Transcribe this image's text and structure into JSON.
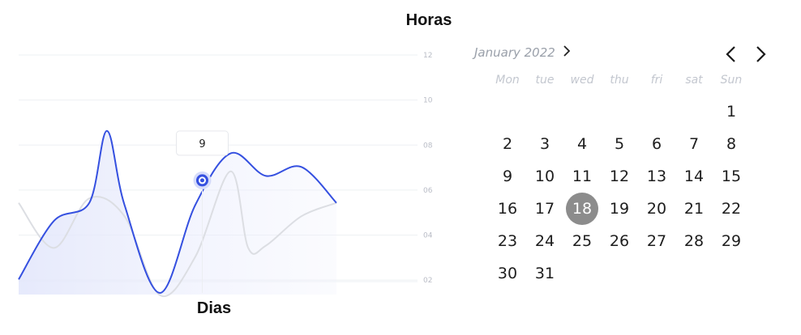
{
  "chart": {
    "title": "Horas",
    "xlabel": "Dias",
    "tooltip": "9"
  },
  "chart_data": {
    "type": "line",
    "title": "Horas",
    "xlabel": "Dias",
    "ylabel": "",
    "ylim": [
      1,
      12
    ],
    "yticks": [
      "12",
      "10",
      "08",
      "06",
      "04",
      "02"
    ],
    "grid": true,
    "series": [
      {
        "color": "#3550e0",
        "filled": true,
        "x": [
          0,
          10,
          20,
          25,
          30,
          40,
          50,
          60,
          70,
          80,
          90
        ],
        "y": [
          1.6,
          4.2,
          5.0,
          8.2,
          4.9,
          1.0,
          4.9,
          7.2,
          6.2,
          6.6,
          5.0
        ]
      },
      {
        "color": "#dcdee3",
        "filled": false,
        "x": [
          0,
          10,
          20,
          30,
          40,
          50,
          60,
          65,
          70,
          80,
          90
        ],
        "y": [
          5.0,
          3.0,
          5.2,
          4.4,
          0.9,
          2.6,
          6.4,
          3.0,
          3.1,
          4.4,
          5.0
        ]
      }
    ],
    "highlight": {
      "x": 52,
      "y": 6.0,
      "label": "9"
    }
  },
  "calendar": {
    "month_label": "January 2022",
    "weekdays": [
      "Mon",
      "tue",
      "wed",
      "thu",
      "fri",
      "sat",
      "Sun"
    ],
    "days": [
      "1",
      "2",
      "3",
      "4",
      "5",
      "6",
      "7",
      "8",
      "9",
      "10",
      "11",
      "12",
      "13",
      "14",
      "15",
      "16",
      "17",
      "18",
      "19",
      "20",
      "21",
      "22",
      "23",
      "24",
      "25",
      "26",
      "27",
      "28",
      "29",
      "30",
      "31"
    ],
    "selected_day": "18",
    "colors": {
      "selected": "#8c8c8c",
      "accent": "#3550e0"
    }
  }
}
